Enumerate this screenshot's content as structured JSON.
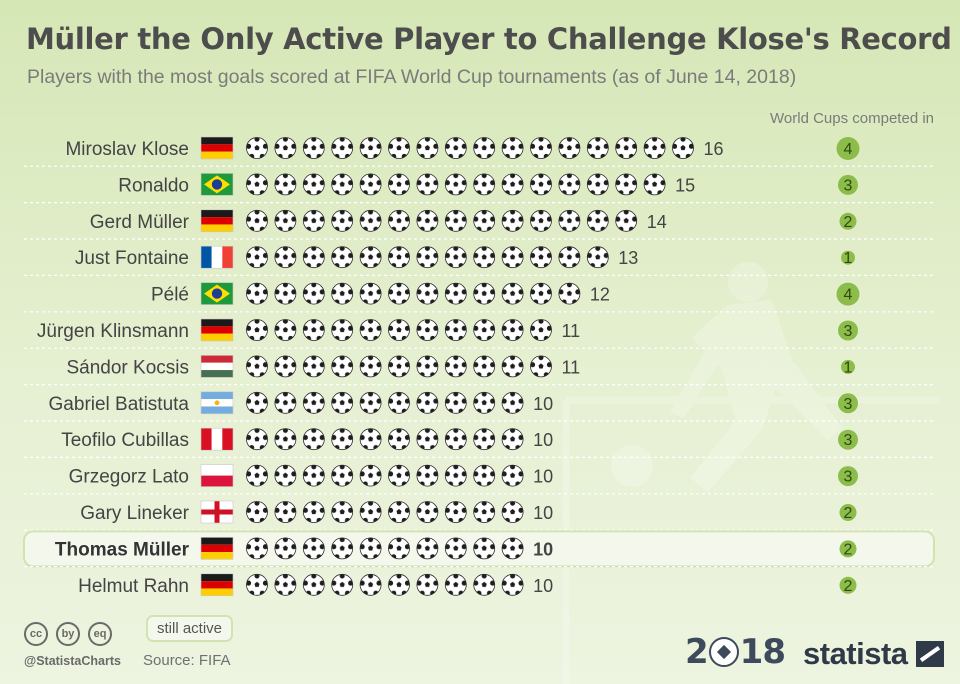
{
  "title": "Müller the Only Active Player to Challenge Klose's Record",
  "subtitle": "Players with the most goals scored at FIFA World Cup tournaments (as of June 14, 2018)",
  "wc_header": "World Cups competed in",
  "legend_label": "still active",
  "source": "Source: FIFA",
  "handle": "@StatistaCharts",
  "cc_icons": [
    "cc",
    "by",
    "eq"
  ],
  "brand": "statista",
  "logo_2018": [
    "2",
    "18"
  ],
  "colors": {
    "accent_green": "#8cbd4a",
    "highlight_bg": "#f4f8ec",
    "highlight_border": "#d2e3b2"
  },
  "chart_data": {
    "type": "table",
    "title": "Müller the Only Active Player to Challenge Klose's Record",
    "unit": "goals",
    "players": [
      {
        "name": "Miroslav Klose",
        "flag": "germany",
        "goals": 16,
        "world_cups": 4,
        "active": false
      },
      {
        "name": "Ronaldo",
        "flag": "brazil",
        "goals": 15,
        "world_cups": 3,
        "active": false
      },
      {
        "name": "Gerd Müller",
        "flag": "germany",
        "goals": 14,
        "world_cups": 2,
        "active": false
      },
      {
        "name": "Just Fontaine",
        "flag": "france",
        "goals": 13,
        "world_cups": 1,
        "active": false
      },
      {
        "name": "Pélé",
        "flag": "brazil",
        "goals": 12,
        "world_cups": 4,
        "active": false
      },
      {
        "name": "Jürgen Klinsmann",
        "flag": "germany",
        "goals": 11,
        "world_cups": 3,
        "active": false
      },
      {
        "name": "Sándor Kocsis",
        "flag": "hungary",
        "goals": 11,
        "world_cups": 1,
        "active": false
      },
      {
        "name": "Gabriel Batistuta",
        "flag": "argentina",
        "goals": 10,
        "world_cups": 3,
        "active": false
      },
      {
        "name": "Teofilo Cubillas",
        "flag": "peru",
        "goals": 10,
        "world_cups": 3,
        "active": false
      },
      {
        "name": "Grzegorz Lato",
        "flag": "poland",
        "goals": 10,
        "world_cups": 3,
        "active": false
      },
      {
        "name": "Gary Lineker",
        "flag": "england",
        "goals": 10,
        "world_cups": 2,
        "active": false
      },
      {
        "name": "Thomas Müller",
        "flag": "germany",
        "goals": 10,
        "world_cups": 2,
        "active": true
      },
      {
        "name": "Helmut Rahn",
        "flag": "germany",
        "goals": 10,
        "world_cups": 2,
        "active": false
      }
    ]
  }
}
